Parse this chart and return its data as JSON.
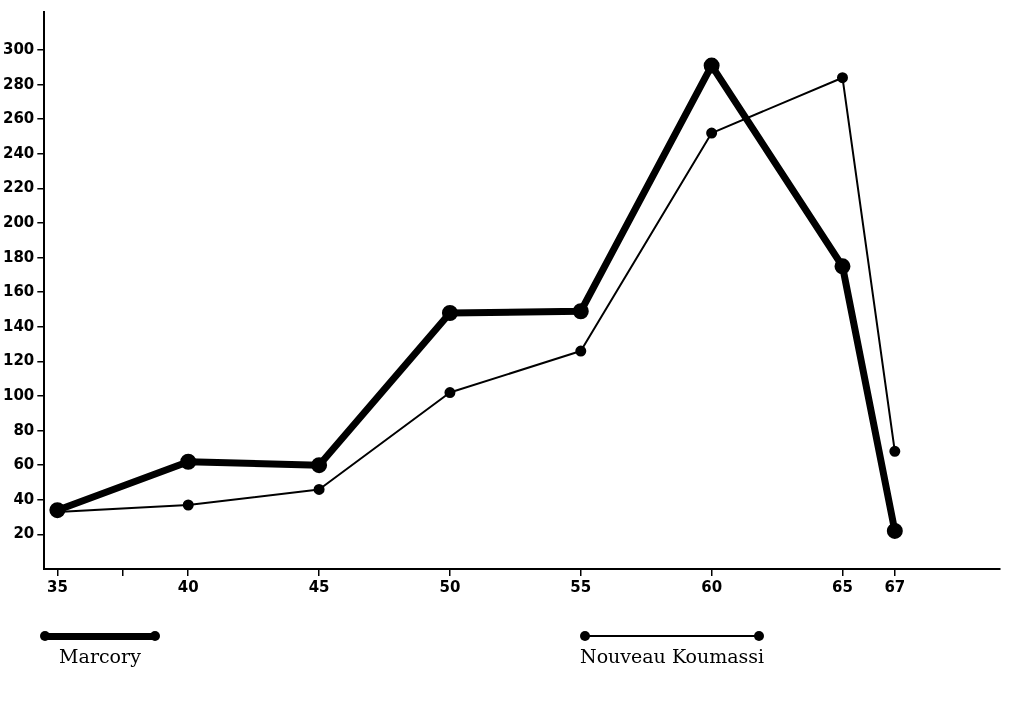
{
  "chart_data": {
    "type": "line",
    "x": [
      35,
      40,
      45,
      50,
      55,
      60,
      65,
      67
    ],
    "series": [
      {
        "name": "Marcory",
        "color": "#000000",
        "values": [
          34,
          62,
          60,
          148,
          149,
          291,
          175,
          22
        ]
      },
      {
        "name": "Nouveau Koumassi",
        "color": "#000000",
        "values": [
          33,
          37,
          46,
          102,
          126,
          252,
          284,
          68
        ]
      }
    ],
    "xlim": [
      34.5,
      71
    ],
    "xticks": [
      35,
      {
        "value": 37.5,
        "label": null
      },
      40,
      45,
      50,
      55,
      60,
      65,
      67
    ],
    "ylim": [
      0,
      322
    ],
    "yticks": [
      20,
      40,
      60,
      80,
      100,
      120,
      140,
      160,
      180,
      200,
      220,
      240,
      260,
      280,
      300
    ],
    "grid": false,
    "legend": "bottom",
    "marker": "circle"
  }
}
